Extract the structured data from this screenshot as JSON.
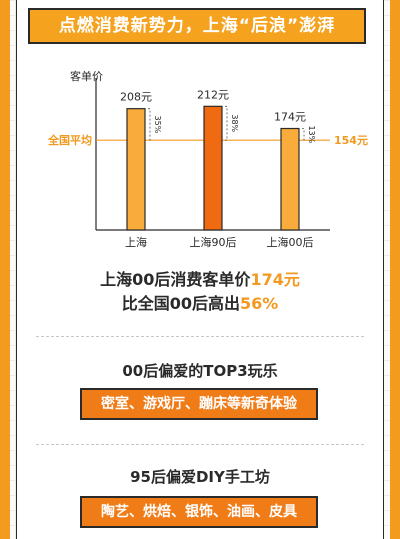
{
  "banner": {
    "title": "点燃消费新势力，上海“后浪”澎湃"
  },
  "chart_data": {
    "type": "bar",
    "ylabel": "客单价",
    "categories": [
      "上海",
      "上海90后",
      "上海00后"
    ],
    "series": [
      {
        "values": [
          208,
          212,
          174
        ]
      }
    ],
    "value_labels": [
      "208元",
      "212元",
      "174元"
    ],
    "diff_labels": [
      "35%",
      "38%",
      "13%"
    ],
    "reference_line": {
      "label": "全国平均",
      "value": 154,
      "value_label": "154元"
    },
    "ylim": [
      0,
      240
    ],
    "colors": {
      "light_bar": "#f9ac3b",
      "dark_bar": "#f06a12",
      "bar_outline": "#2a2a2a",
      "reference": "#f29a20"
    }
  },
  "summary": {
    "line1_prefix": "上海00后消费客单价",
    "line1_value": "174元",
    "line2_prefix": "比全国00后高出",
    "line2_value": "56%"
  },
  "section_top3": {
    "title": "00后偏爱的TOP3玩乐",
    "items": "密室、游戏厅、蹦床等新奇体验"
  },
  "section_diy": {
    "title": "95后偏爱DIY手工坊",
    "items": "陶艺、烘焙、银饰、油画、皮具"
  },
  "colors": {
    "accent": "#f5a21e",
    "pill": "#f07c18",
    "highlight": "#f29a20"
  }
}
